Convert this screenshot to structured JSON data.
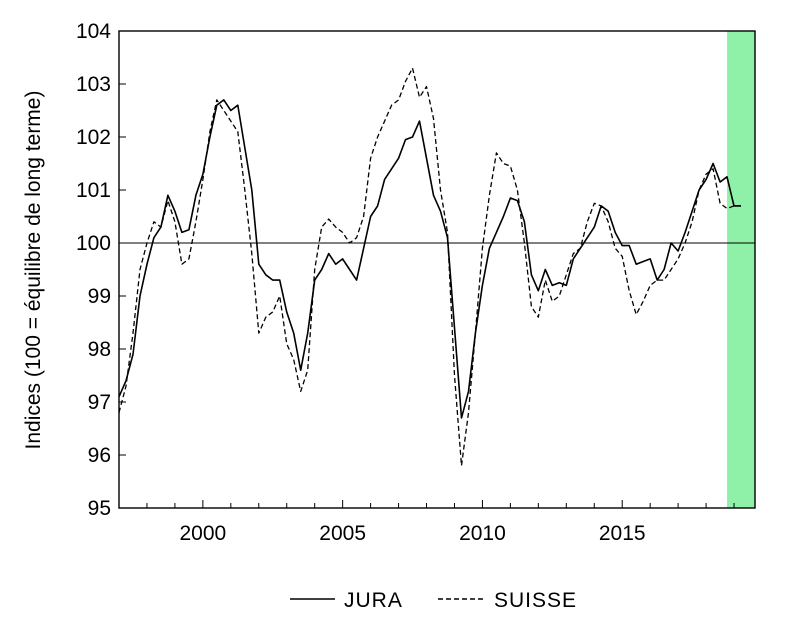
{
  "chart_data": {
    "type": "line",
    "title": "",
    "xlabel": "",
    "ylabel": "Indices (100 = équilibre de long terme)",
    "xlim": [
      1997.0,
      2019.75
    ],
    "ylim": [
      95,
      104
    ],
    "x_ticks": [
      2000,
      2005,
      2010,
      2015
    ],
    "x_tick_labels": [
      "2000",
      "2005",
      "2010",
      "2015"
    ],
    "y_ticks": [
      95,
      96,
      97,
      98,
      99,
      100,
      101,
      102,
      103,
      104
    ],
    "y_tick_labels": [
      "95",
      "96",
      "97",
      "98",
      "99",
      "100",
      "101",
      "102",
      "103",
      "104"
    ],
    "reference_line": 100,
    "shaded_region": {
      "from": 2018.75,
      "to": 2019.75,
      "color": "#8FF0A8"
    },
    "grid": false,
    "legend": {
      "position": "bottom-center"
    },
    "series": [
      {
        "name": "JURA",
        "style": "solid",
        "x": [
          1997.0,
          1997.25,
          1997.5,
          1997.75,
          1998.0,
          1998.25,
          1998.5,
          1998.75,
          1999.0,
          1999.25,
          1999.5,
          1999.75,
          2000.0,
          2000.25,
          2000.5,
          2000.75,
          2001.0,
          2001.25,
          2001.5,
          2001.75,
          2002.0,
          2002.25,
          2002.5,
          2002.75,
          2003.0,
          2003.25,
          2003.5,
          2003.75,
          2004.0,
          2004.25,
          2004.5,
          2004.75,
          2005.0,
          2005.25,
          2005.5,
          2005.75,
          2006.0,
          2006.25,
          2006.5,
          2006.75,
          2007.0,
          2007.25,
          2007.5,
          2007.75,
          2008.0,
          2008.25,
          2008.5,
          2008.75,
          2009.0,
          2009.25,
          2009.5,
          2009.75,
          2010.0,
          2010.25,
          2010.5,
          2010.75,
          2011.0,
          2011.25,
          2011.5,
          2011.75,
          2012.0,
          2012.25,
          2012.5,
          2012.75,
          2013.0,
          2013.25,
          2013.5,
          2013.75,
          2014.0,
          2014.25,
          2014.5,
          2014.75,
          2015.0,
          2015.25,
          2015.5,
          2015.75,
          2016.0,
          2016.25,
          2016.5,
          2016.75,
          2017.0,
          2017.25,
          2017.5,
          2017.75,
          2018.0,
          2018.25,
          2018.5,
          2018.75,
          2019.0,
          2019.25
        ],
        "y": [
          97.1,
          97.4,
          97.9,
          99.0,
          99.6,
          100.1,
          100.3,
          100.9,
          100.6,
          100.2,
          100.25,
          100.9,
          101.3,
          102.0,
          102.6,
          102.7,
          102.5,
          102.6,
          101.8,
          101.0,
          99.6,
          99.4,
          99.3,
          99.3,
          98.7,
          98.3,
          97.6,
          98.3,
          99.3,
          99.5,
          99.8,
          99.6,
          99.7,
          99.5,
          99.3,
          99.9,
          100.5,
          100.7,
          101.2,
          101.4,
          101.6,
          101.95,
          102.0,
          102.3,
          101.6,
          100.9,
          100.6,
          100.1,
          98.4,
          96.7,
          97.2,
          98.3,
          99.2,
          99.9,
          100.2,
          100.5,
          100.85,
          100.8,
          100.4,
          99.4,
          99.1,
          99.5,
          99.2,
          99.25,
          99.2,
          99.7,
          99.9,
          100.1,
          100.3,
          100.7,
          100.6,
          100.2,
          99.95,
          99.95,
          99.6,
          99.65,
          99.7,
          99.3,
          99.5,
          100.0,
          99.85,
          100.2,
          100.6,
          101.0,
          101.2,
          101.5,
          101.15,
          101.25,
          100.7,
          100.7
        ]
      },
      {
        "name": "SUISSE",
        "style": "dashed",
        "x": [
          1997.0,
          1997.25,
          1997.5,
          1997.75,
          1998.0,
          1998.25,
          1998.5,
          1998.75,
          1999.0,
          1999.25,
          1999.5,
          1999.75,
          2000.0,
          2000.25,
          2000.5,
          2000.75,
          2001.0,
          2001.25,
          2001.5,
          2001.75,
          2002.0,
          2002.25,
          2002.5,
          2002.75,
          2003.0,
          2003.25,
          2003.5,
          2003.75,
          2004.0,
          2004.25,
          2004.5,
          2004.75,
          2005.0,
          2005.25,
          2005.5,
          2005.75,
          2006.0,
          2006.25,
          2006.5,
          2006.75,
          2007.0,
          2007.25,
          2007.5,
          2007.75,
          2008.0,
          2008.25,
          2008.5,
          2008.75,
          2009.0,
          2009.25,
          2009.5,
          2009.75,
          2010.0,
          2010.25,
          2010.5,
          2010.75,
          2011.0,
          2011.25,
          2011.5,
          2011.75,
          2012.0,
          2012.25,
          2012.5,
          2012.75,
          2013.0,
          2013.25,
          2013.5,
          2013.75,
          2014.0,
          2014.25,
          2014.5,
          2014.75,
          2015.0,
          2015.25,
          2015.5,
          2015.75,
          2016.0,
          2016.25,
          2016.5,
          2016.75,
          2017.0,
          2017.25,
          2017.5,
          2017.75,
          2018.0,
          2018.25,
          2018.5,
          2018.75,
          2019.0,
          2019.25
        ],
        "y": [
          96.8,
          97.3,
          98.3,
          99.5,
          100.0,
          100.4,
          100.3,
          100.8,
          100.4,
          99.6,
          99.7,
          100.4,
          101.2,
          102.1,
          102.7,
          102.5,
          102.3,
          102.1,
          101.0,
          99.8,
          98.3,
          98.6,
          98.7,
          99.0,
          98.1,
          97.8,
          97.2,
          97.6,
          99.5,
          100.3,
          100.45,
          100.3,
          100.2,
          100.0,
          100.1,
          100.5,
          101.6,
          102.0,
          102.3,
          102.6,
          102.7,
          103.05,
          103.3,
          102.75,
          102.95,
          102.35,
          101.0,
          100.2,
          97.5,
          95.8,
          96.8,
          98.3,
          99.9,
          100.9,
          101.7,
          101.5,
          101.45,
          101.0,
          100.0,
          98.8,
          98.6,
          99.3,
          98.9,
          99.0,
          99.4,
          99.8,
          99.9,
          100.4,
          100.75,
          100.7,
          100.4,
          99.9,
          99.75,
          99.1,
          98.65,
          98.9,
          99.2,
          99.3,
          99.3,
          99.5,
          99.7,
          100.0,
          100.4,
          101.0,
          101.3,
          101.4,
          100.75,
          100.65,
          100.7,
          100.7
        ]
      }
    ]
  }
}
